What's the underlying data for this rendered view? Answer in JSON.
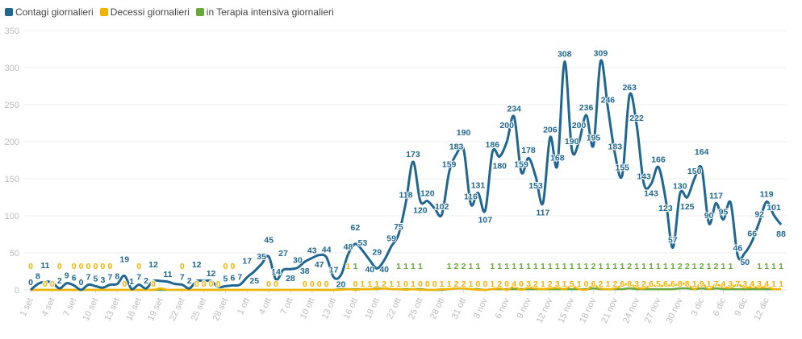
{
  "legend": [
    {
      "label": "Contagi giornalieri",
      "color": "#1f6791"
    },
    {
      "label": "Decessi giornalieri",
      "color": "#f2b300"
    },
    {
      "label": "in Terapia intensiva giornalieri",
      "color": "#6aa83c"
    }
  ],
  "chart_data": {
    "type": "line",
    "title": "",
    "xlabel": "",
    "ylabel": "",
    "ylim": [
      0,
      350
    ],
    "yticks": [
      0,
      50,
      100,
      150,
      200,
      250,
      300,
      350
    ],
    "grid": true,
    "legend_placement": "top-left",
    "categories": [
      "1 set",
      "2 set",
      "3 set",
      "4 set",
      "5 set",
      "6 set",
      "7 set",
      "8 set",
      "9 set",
      "10 set",
      "11 set",
      "12 set",
      "13 set",
      "14 set",
      "15 set",
      "16 set",
      "17 set",
      "18 set",
      "19 set",
      "20 set",
      "21 set",
      "22 set",
      "23 set",
      "24 set",
      "25 set",
      "26 set",
      "27 set",
      "28 set",
      "29 set",
      "30 set",
      "1 ott",
      "2 ott",
      "3 ott",
      "4 ott",
      "5 ott",
      "6 ott",
      "7 ott",
      "8 ott",
      "9 ott",
      "10 ott",
      "11 ott",
      "12 ott",
      "13 ott",
      "14 ott",
      "15 ott",
      "16 ott",
      "17 ott",
      "18 ott",
      "19 ott",
      "20 ott",
      "21 ott",
      "22 ott",
      "23 ott",
      "24 ott",
      "25 ott",
      "26 ott",
      "27 ott",
      "28 ott",
      "29 ott",
      "30 ott",
      "31 ott",
      "1 nov",
      "2 nov",
      "3 nov",
      "4 nov",
      "5 nov",
      "6 nov",
      "7 nov",
      "8 nov",
      "9 nov",
      "10 nov",
      "11 nov",
      "12 nov",
      "13 nov",
      "14 nov",
      "15 nov",
      "16 nov",
      "17 nov",
      "18 nov",
      "19 nov",
      "20 nov",
      "21 nov",
      "22 nov",
      "23 nov",
      "24 nov",
      "25 nov",
      "26 nov",
      "27 nov",
      "28 nov",
      "29 nov",
      "30 nov",
      "1 dic",
      "2 dic",
      "3 dic",
      "4 dic",
      "5 dic",
      "6 dic",
      "7 dic",
      "8 dic",
      "9 dic",
      "10 dic",
      "11 dic",
      "12 dic",
      "13 dic",
      "14 dic"
    ],
    "series": [
      {
        "name": "Contagi giornalieri",
        "color": "#1f6791",
        "values": [
          0,
          8,
          11,
          10,
          2,
          9,
          6,
          0,
          7,
          5,
          3,
          7,
          8,
          19,
          1,
          7,
          2,
          12,
          12,
          11,
          8,
          7,
          2,
          12,
          12,
          12,
          4,
          5,
          6,
          7,
          17,
          25,
          35,
          45,
          14,
          27,
          28,
          30,
          38,
          43,
          47,
          44,
          17,
          20,
          48,
          62,
          53,
          40,
          29,
          40,
          59,
          75,
          118,
          173,
          120,
          120,
          110,
          102,
          159,
          183,
          190,
          116,
          131,
          107,
          186,
          180,
          200,
          234,
          159,
          178,
          153,
          117,
          206,
          168,
          308,
          190,
          200,
          236,
          195,
          309,
          246,
          183,
          155,
          263,
          222,
          143,
          143,
          166,
          123,
          57,
          130,
          125,
          150,
          164,
          90,
          117,
          95,
          118,
          46,
          50,
          66,
          92,
          119,
          101,
          88
        ]
      },
      {
        "name": "Decessi giornalieri",
        "color": "#f2b300",
        "values": [
          0,
          0,
          0,
          0,
          0,
          0,
          0,
          0,
          0,
          0,
          0,
          0,
          0,
          0,
          0,
          0,
          0,
          0,
          2,
          0,
          0,
          0,
          0,
          0,
          0,
          0,
          0,
          0,
          0,
          0,
          0,
          0,
          0,
          0,
          0,
          0,
          0,
          0,
          0,
          0,
          0,
          0,
          0,
          0,
          1,
          0,
          1,
          1,
          1,
          2,
          1,
          1,
          0,
          1,
          0,
          0,
          0,
          1,
          1,
          2,
          2,
          1,
          0,
          0,
          1,
          2,
          0,
          4,
          0,
          3,
          2,
          1,
          2,
          3,
          1,
          5,
          1,
          0,
          6,
          2,
          1,
          2,
          6,
          8,
          3,
          2,
          6,
          5,
          6,
          6,
          8,
          8,
          1,
          9,
          1,
          7,
          4,
          3,
          7,
          3,
          4,
          3,
          4,
          1,
          1
        ]
      },
      {
        "name": "in Terapia intensiva giornalieri",
        "color": "#6aa83c",
        "values": [
          0,
          0,
          0,
          0,
          0,
          0,
          0,
          0,
          0,
          0,
          0,
          0,
          0,
          0,
          0,
          0,
          0,
          0,
          0,
          0,
          0,
          0,
          0,
          0,
          0,
          0,
          0,
          0,
          0,
          0,
          0,
          0,
          0,
          0,
          0,
          0,
          0,
          0,
          0,
          0,
          0,
          0,
          0,
          1,
          1,
          1,
          1,
          1,
          2,
          2,
          1,
          1,
          1,
          1,
          1,
          0,
          0,
          0,
          1,
          2,
          2,
          1,
          1,
          0,
          1,
          1,
          1,
          1,
          1,
          1,
          1,
          1,
          1,
          1,
          1,
          1,
          1,
          1,
          2,
          1,
          1,
          1,
          1,
          2,
          1,
          1,
          1,
          1,
          1,
          1,
          2,
          2,
          1,
          2,
          1,
          2,
          1,
          1,
          1,
          1,
          1,
          1,
          1,
          1,
          1
        ]
      }
    ]
  }
}
